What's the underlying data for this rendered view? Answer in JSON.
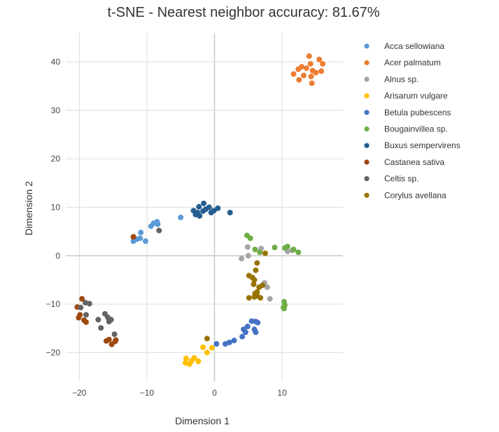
{
  "chart_data": {
    "type": "scatter",
    "title": "t-SNE - Nearest neighbor accuracy: 81.67%",
    "xlabel": "Dimension 1",
    "ylabel": "Dimension 2",
    "xlim": [
      -22,
      19
    ],
    "ylim": [
      -26,
      46
    ],
    "xticks": [
      -20,
      -10,
      0,
      10
    ],
    "yticks": [
      -20,
      -10,
      0,
      10,
      20,
      30,
      40
    ],
    "xtick_labels": [
      "−20",
      "−10",
      "0",
      "10"
    ],
    "ytick_labels": [
      "−20",
      "−10",
      "0",
      "10",
      "20",
      "30",
      "40"
    ],
    "grid": true,
    "legend_position": "right",
    "series": [
      {
        "name": "Acca sellowiana",
        "color": "#5b9bd5",
        "x": [
          -12,
          -11.5,
          -11,
          -10.9,
          -10.2,
          -9.4,
          -9,
          -8.5,
          -8.4,
          -5
        ],
        "y": [
          3,
          3.4,
          3.6,
          4.8,
          3,
          6.1,
          6.7,
          7,
          6.5,
          7.9
        ]
      },
      {
        "name": "Acer palmatum",
        "color": "#ed7d31",
        "x": [
          11.7,
          12.4,
          12.9,
          13.6,
          14,
          14.2,
          14.5,
          14.3,
          15,
          12.5,
          13.2,
          15.5,
          14.4,
          16,
          15.8
        ],
        "y": [
          37.5,
          38.5,
          39,
          38.7,
          41.2,
          39.6,
          38.2,
          37,
          37.8,
          36.3,
          37.2,
          40.5,
          35.6,
          39.6,
          38.1
        ]
      },
      {
        "name": "Alnus sp.",
        "color": "#a5a5a5",
        "x": [
          4,
          4.9,
          5,
          6.9,
          7.4,
          7.8,
          8.2,
          10.8,
          11.5
        ],
        "y": [
          -0.6,
          1.8,
          0,
          1.5,
          -5.6,
          -6.5,
          -8.9,
          0.9,
          1.1
        ]
      },
      {
        "name": "Arisarum vulgare",
        "color": "#ffc000",
        "x": [
          -4.3,
          -4.2,
          -3.7,
          -3.4,
          -3,
          -2.4,
          -1.7,
          -1.1,
          -0.4
        ],
        "y": [
          -22.1,
          -21.2,
          -22.4,
          -21.7,
          -21.1,
          -21.8,
          -18.9,
          -20,
          -19
        ],
        "point_labels": []
      },
      {
        "name": "Betula pubescens",
        "color": "#4472c4",
        "x": [
          0.3,
          1.6,
          2.2,
          2.9,
          4.1,
          4.3,
          4.6,
          4.9,
          5.5,
          5.9,
          6.1,
          6.4,
          6.1
        ],
        "y": [
          -18.2,
          -18.2,
          -17.9,
          -17.5,
          -16.7,
          -15.2,
          -15.8,
          -14.6,
          -13.5,
          -15.2,
          -13.6,
          -13.8,
          -15.8
        ]
      },
      {
        "name": "Bougainvillea sp.",
        "color": "#70ad47",
        "x": [
          4.8,
          5.3,
          6,
          6.7,
          8.9,
          10.4,
          10.8,
          11.7,
          12.4,
          10.3,
          10.4,
          10.2,
          10.3
        ],
        "y": [
          4.2,
          3.6,
          1.3,
          0.7,
          1.7,
          1.6,
          1.9,
          1.3,
          0.7,
          -9.5,
          -10.2,
          -10.7,
          -10.9
        ]
      },
      {
        "name": "Buxus sempervirens",
        "color": "#255e91",
        "x": [
          -3.1,
          -2.8,
          -2.3,
          -2.5,
          -2.2,
          -1.6,
          -1.3,
          -0.8,
          -0.5,
          -0.1,
          0.5,
          2.3,
          -1.7
        ],
        "y": [
          9.3,
          8.5,
          10.1,
          8.9,
          8.2,
          10.8,
          9.6,
          10,
          8.9,
          9.3,
          9.8,
          8.9,
          9.2
        ]
      },
      {
        "name": "Castanea sativa",
        "color": "#9e480e",
        "x": [
          -12,
          -20.3,
          -19.9,
          -20.1,
          -19.6,
          -19.3,
          -19,
          -16,
          -15.6,
          -15.2,
          -14.7,
          -14.6
        ],
        "y": [
          3.9,
          -10.6,
          -12.2,
          -12.8,
          -8.9,
          -13.3,
          -13.7,
          -17.6,
          -17.3,
          -18.3,
          -17.7,
          -17.4
        ]
      },
      {
        "name": "Celtis sp.",
        "color": "#636363",
        "x": [
          -8.2,
          -19.8,
          -19.1,
          -18.5,
          -19,
          -17.2,
          -16.8,
          -16.2,
          -15.8,
          -15.6,
          -15.3,
          -14.8
        ],
        "y": [
          5.2,
          -10.7,
          -9.7,
          -9.9,
          -12.2,
          -13.2,
          -14.9,
          -12,
          -12.7,
          -13.6,
          -13.2,
          -16.2
        ]
      },
      {
        "name": "Corylus avellana",
        "color": "#997300",
        "x": [
          -1.1,
          5.1,
          5.6,
          5.8,
          6.1,
          6.3,
          6.6,
          6.3,
          6,
          5.9,
          6.3,
          7.1,
          5.1,
          5.9,
          7.5,
          6.8
        ],
        "y": [
          -17.1,
          -4.1,
          -4.5,
          -5.9,
          -3,
          -1.5,
          -6.5,
          -7.5,
          -7.8,
          -8.5,
          -8.3,
          -6.1,
          -8.7,
          -5,
          0.5,
          -8.7
        ]
      }
    ]
  }
}
